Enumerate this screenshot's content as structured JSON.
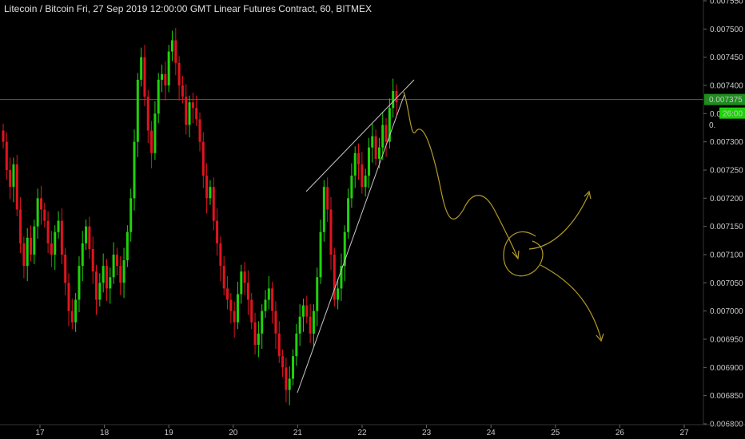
{
  "header": {
    "title": "Litecoin / Bitcoin Fri, 27 Sep 2019 12:00:00 GMT Linear Futures Contract, 60, BITMEX"
  },
  "colors": {
    "background": "#000000",
    "bull": "#1ed20a",
    "bear": "#e0141e",
    "price_line": "#1e8c1e",
    "trendline": "#c8c8c8",
    "drawing": "#b49a28",
    "axis_text": "#c8c8c8"
  },
  "chart_data": {
    "type": "candlestick",
    "ylim": [
      0.0068,
      0.00755
    ],
    "y_ticks": [
      "0.007550",
      "0.007500",
      "0.007450",
      "0.007400",
      "0.007350",
      "0.007300",
      "0.007250",
      "0.007200",
      "0.007150",
      "0.007100",
      "0.007050",
      "0.007000",
      "0.006950",
      "0.006900",
      "0.006850",
      "0.006800"
    ],
    "x_ticks": [
      "17",
      "18",
      "19",
      "20",
      "21",
      "22",
      "23",
      "24",
      "25",
      "26",
      "27"
    ],
    "current_price": "0.007375",
    "price_visible_fragment": "0.",
    "countdown": "26:00",
    "series_close": [
      0.0073,
      0.00725,
      0.00722,
      0.00726,
      0.00718,
      0.00712,
      0.00708,
      0.00713,
      0.0071,
      0.00715,
      0.0072,
      0.00718,
      0.00716,
      0.00712,
      0.0071,
      0.00714,
      0.00716,
      0.0071,
      0.00705,
      0.007,
      0.00698,
      0.00702,
      0.00708,
      0.00712,
      0.00715,
      0.00711,
      0.00707,
      0.00702,
      0.00705,
      0.00708,
      0.00704,
      0.00706,
      0.0071,
      0.00708,
      0.00705,
      0.00709,
      0.00714,
      0.0072,
      0.0073,
      0.00741,
      0.00745,
      0.00738,
      0.00732,
      0.00728,
      0.00735,
      0.00741,
      0.00742,
      0.0074,
      0.00746,
      0.00748,
      0.00744,
      0.0074,
      0.00738,
      0.00733,
      0.00737,
      0.00736,
      0.00734,
      0.0073,
      0.00724,
      0.0072,
      0.00722,
      0.00716,
      0.00712,
      0.00708,
      0.00704,
      0.00702,
      0.007,
      0.00698,
      0.00703,
      0.00707,
      0.00705,
      0.00702,
      0.00698,
      0.00694,
      0.00696,
      0.007,
      0.00702,
      0.00704,
      0.007,
      0.00696,
      0.00692,
      0.0069,
      0.00686,
      0.00688,
      0.00692,
      0.00696,
      0.00699,
      0.00701,
      0.00699,
      0.00696,
      0.007,
      0.00706,
      0.00714,
      0.00722,
      0.00718,
      0.0071,
      0.00702,
      0.00704,
      0.00708,
      0.00714,
      0.0072,
      0.00724,
      0.00728,
      0.00726,
      0.00722,
      0.00724,
      0.00729,
      0.00731,
      0.00727,
      0.00729,
      0.00733,
      0.0073,
      0.00736,
      0.00739,
      0.00737
    ]
  }
}
